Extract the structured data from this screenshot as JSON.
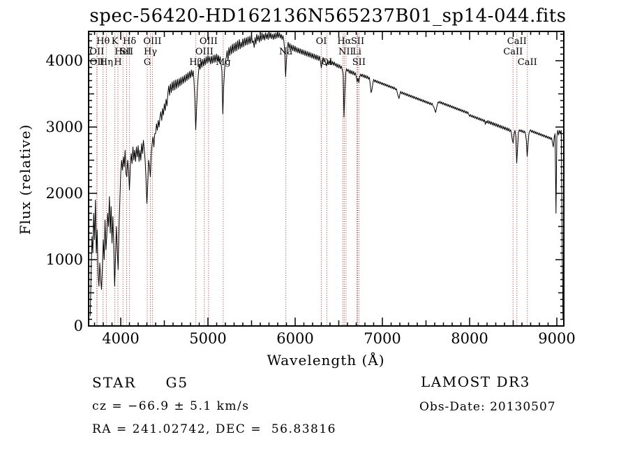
{
  "figure": {
    "title": "spec-56420-HD162136N565237B01_sp14-044.fits"
  },
  "colors": {
    "background": "#ffffff",
    "spectrum": "#000000",
    "line_marker": "#a03232",
    "text": "#000000"
  },
  "annotations": {
    "object_type": "STAR",
    "subclass": "G5",
    "cz_line": "cz = −66.9 ± 5.1 km/s",
    "radec_line": "RA = 241.02742, DEC =  56.83816",
    "survey": "LAMOST DR3",
    "obsdate_line": "Obs-Date: 20130507"
  },
  "chart_data": {
    "type": "line",
    "title": "spec-56420-HD162136N565237B01_sp14-044.fits",
    "xlabel": "Wavelength (Å)",
    "ylabel": "Flux (relative)",
    "x_range": [
      3632,
      9080
    ],
    "y_range": [
      0,
      4442
    ],
    "x_ticks": [
      4000,
      5000,
      6000,
      7000,
      8000,
      9000
    ],
    "y_ticks": [
      0,
      1000,
      2000,
      3000,
      4000
    ],
    "x_minor_tick_step": 100,
    "y_minor_tick_step": 100,
    "grid": false,
    "legend": "none",
    "spectral_line_markers": [
      3726,
      3729,
      3798,
      3835,
      3933,
      3968,
      4026,
      4068,
      4101,
      4305,
      4340,
      4363,
      4861,
      4959,
      5007,
      5175,
      5893,
      6300,
      6363,
      6548,
      6563,
      6583,
      6708,
      6716,
      6731,
      8498,
      8542,
      8662
    ],
    "spectral_line_labels": [
      {
        "text": "Hθ",
        "wavelength": 3798,
        "row": 1
      },
      {
        "text": "K",
        "wavelength": 3933,
        "row": 1
      },
      {
        "text": "Hδ",
        "wavelength": 4101,
        "row": 1
      },
      {
        "text": "OIII",
        "wavelength": 4363,
        "row": 1
      },
      {
        "text": "OIII",
        "wavelength": 5007,
        "row": 1
      },
      {
        "text": "OI",
        "wavelength": 6300,
        "row": 1
      },
      {
        "text": "Hα",
        "wavelength": 6563,
        "row": 1
      },
      {
        "text": "SII",
        "wavelength": 6716,
        "row": 1
      },
      {
        "text": "CaII",
        "wavelength": 8542,
        "row": 1
      },
      {
        "text": "OII",
        "wavelength": 3726,
        "row": 2
      },
      {
        "text": "HeI",
        "wavelength": 4026,
        "row": 2
      },
      {
        "text": "SII",
        "wavelength": 4068,
        "row": 2
      },
      {
        "text": "Hγ",
        "wavelength": 4340,
        "row": 2
      },
      {
        "text": "OIII",
        "wavelength": 4959,
        "row": 2
      },
      {
        "text": "Na",
        "wavelength": 5893,
        "row": 2
      },
      {
        "text": "NII",
        "wavelength": 6583,
        "row": 2
      },
      {
        "text": "Li",
        "wavelength": 6708,
        "row": 2
      },
      {
        "text": "CaII",
        "wavelength": 8498,
        "row": 2
      },
      {
        "text": "OII",
        "wavelength": 3729,
        "row": 3
      },
      {
        "text": "Hη",
        "wavelength": 3835,
        "row": 3
      },
      {
        "text": "H",
        "wavelength": 3968,
        "row": 3
      },
      {
        "text": "G",
        "wavelength": 4305,
        "row": 3
      },
      {
        "text": "Hβ",
        "wavelength": 4861,
        "row": 3
      },
      {
        "text": "Mg",
        "wavelength": 5175,
        "row": 3
      },
      {
        "text": "OI",
        "wavelength": 6363,
        "row": 3
      },
      {
        "text": "SII",
        "wavelength": 6731,
        "row": 3
      },
      {
        "text": "CaII",
        "wavelength": 8662,
        "row": 3
      }
    ],
    "spectrum": {
      "x_start": 3650,
      "x_step": 10,
      "flux": [
        150,
        750,
        1350,
        1100,
        1700,
        1300,
        1900,
        1100,
        1450,
        800,
        600,
        950,
        700,
        550,
        900,
        1300,
        1000,
        1600,
        1150,
        1350,
        1700,
        1500,
        1950,
        1400,
        1800,
        1250,
        1650,
        1200,
        600,
        1000,
        1500,
        1150,
        850,
        1450,
        1900,
        2300,
        2500,
        2350,
        2550,
        2400,
        2650,
        2300,
        2250,
        2500,
        2350,
        2050,
        2400,
        2600,
        2450,
        2700,
        2500,
        2650,
        2480,
        2700,
        2550,
        2720,
        2480,
        2650,
        2500,
        2750,
        2600,
        2800,
        2650,
        2500,
        2200,
        1850,
        2150,
        2500,
        2400,
        2250,
        2600,
        2750,
        2850,
        2700,
        2900,
        2900,
        3050,
        2950,
        3100,
        3000,
        3150,
        3230,
        3100,
        3280,
        3180,
        3350,
        3250,
        3420,
        3320,
        3500,
        3620,
        3480,
        3650,
        3520,
        3680,
        3550,
        3700,
        3560,
        3710,
        3580,
        3720,
        3600,
        3730,
        3620,
        3750,
        3640,
        3760,
        3660,
        3780,
        3680,
        3800,
        3700,
        3820,
        3720,
        3840,
        3740,
        3860,
        3760,
        3850,
        3700,
        3400,
        2960,
        3300,
        3600,
        3800,
        3950,
        3870,
        4000,
        3900,
        4020,
        3920,
        4040,
        3940,
        4060,
        3960,
        4080,
        3980,
        4060,
        3950,
        4070,
        3960,
        4080,
        3970,
        4090,
        3980,
        4100,
        4000,
        4080,
        3980,
        4060,
        3950,
        3850,
        3200,
        3600,
        3850,
        4000,
        4050,
        4150,
        4000,
        4200,
        4080,
        4220,
        4100,
        4250,
        4120,
        4260,
        4140,
        4280,
        4150,
        4300,
        4170,
        4320,
        4180,
        4280,
        4200,
        4330,
        4210,
        4340,
        4230,
        4350,
        4240,
        4360,
        4250,
        4370,
        4260,
        4380,
        4270,
        4300,
        4200,
        4350,
        4250,
        4400,
        4300,
        4380,
        4280,
        4400,
        4300,
        4420,
        4320,
        4400,
        4310,
        4420,
        4330,
        4410,
        4320,
        4430,
        4340,
        4420,
        4330,
        4400,
        4320,
        4410,
        4330,
        4420,
        4340,
        4430,
        4350,
        4420,
        4340,
        4400,
        4320,
        4380,
        4300,
        4150,
        3760,
        4000,
        4200,
        4280,
        4180,
        4260,
        4160,
        4240,
        4150,
        4230,
        4140,
        4220,
        4130,
        4200,
        4120,
        4190,
        4110,
        4180,
        4100,
        4170,
        4090,
        4160,
        4080,
        4150,
        4070,
        4140,
        4060,
        4130,
        4050,
        4120,
        4040,
        4110,
        4030,
        4100,
        4020,
        4090,
        4010,
        4080,
        4000,
        4070,
        3990,
        3890,
        4000,
        4050,
        3980,
        4020,
        3960,
        3920,
        3990,
        3940,
        4000,
        3950,
        4010,
        3940,
        3990,
        3930,
        3980,
        3920,
        3960,
        3900,
        3950,
        3890,
        3940,
        3880,
        3920,
        3860,
        3800,
        3150,
        3550,
        3820,
        3880,
        3840,
        3870,
        3810,
        3860,
        3800,
        3850,
        3790,
        3840,
        3780,
        3820,
        3760,
        3680,
        3740,
        3670,
        3760,
        3800,
        3760,
        3800,
        3750,
        3790,
        3740,
        3780,
        3730,
        3770,
        3720,
        3750,
        3650,
        3520,
        3560,
        3660,
        3720,
        3680,
        3710,
        3670,
        3700,
        3660,
        3690,
        3650,
        3680,
        3640,
        3670,
        3630,
        3660,
        3620,
        3650,
        3610,
        3640,
        3600,
        3630,
        3590,
        3620,
        3580,
        3610,
        3570,
        3600,
        3560,
        3580,
        3520,
        3470,
        3430,
        3490,
        3540,
        3500,
        3530,
        3490,
        3520,
        3480,
        3510,
        3470,
        3500,
        3460,
        3490,
        3450,
        3480,
        3440,
        3470,
        3430,
        3460,
        3420,
        3450,
        3410,
        3440,
        3400,
        3430,
        3390,
        3420,
        3380,
        3410,
        3370,
        3400,
        3360,
        3390,
        3350,
        3380,
        3340,
        3370,
        3330,
        3360,
        3320,
        3300,
        3260,
        3220,
        3280,
        3340,
        3380,
        3360,
        3390,
        3350,
        3380,
        3340,
        3370,
        3330,
        3360,
        3320,
        3350,
        3310,
        3340,
        3300,
        3330,
        3290,
        3320,
        3280,
        3310,
        3270,
        3300,
        3260,
        3290,
        3250,
        3280,
        3240,
        3270,
        3230,
        3260,
        3220,
        3250,
        3210,
        3240,
        3200,
        3230,
        3190,
        3160,
        3190,
        3150,
        3180,
        3140,
        3170,
        3130,
        3160,
        3120,
        3150,
        3110,
        3140,
        3100,
        3130,
        3090,
        3120,
        3080,
        3110,
        3040,
        3090,
        3060,
        3100,
        3050,
        3090,
        3040,
        3080,
        3030,
        3070,
        3020,
        3060,
        3010,
        3050,
        3000,
        3040,
        2990,
        3030,
        2980,
        3020,
        2970,
        3010,
        2960,
        3000,
        2950,
        2990,
        2940,
        2980,
        2930,
        2960,
        2900,
        2800,
        2760,
        2900,
        2950,
        2850,
        2460,
        2700,
        2920,
        2960,
        2930,
        2960,
        2920,
        2950,
        2910,
        2940,
        2900,
        2800,
        2560,
        2750,
        2900,
        2940,
        2960,
        2920,
        2950,
        2910,
        2940,
        2900,
        2930,
        2890,
        2920,
        2880,
        2910,
        2870,
        2900,
        2860,
        2890,
        2850,
        2880,
        2840,
        2870,
        2830,
        2860,
        2820,
        2850,
        2810,
        2840,
        2760,
        2700,
        2850,
        2900,
        1700,
        2850,
        2950,
        2880,
        2950,
        2900,
        2950,
        1500,
        100
      ]
    }
  }
}
